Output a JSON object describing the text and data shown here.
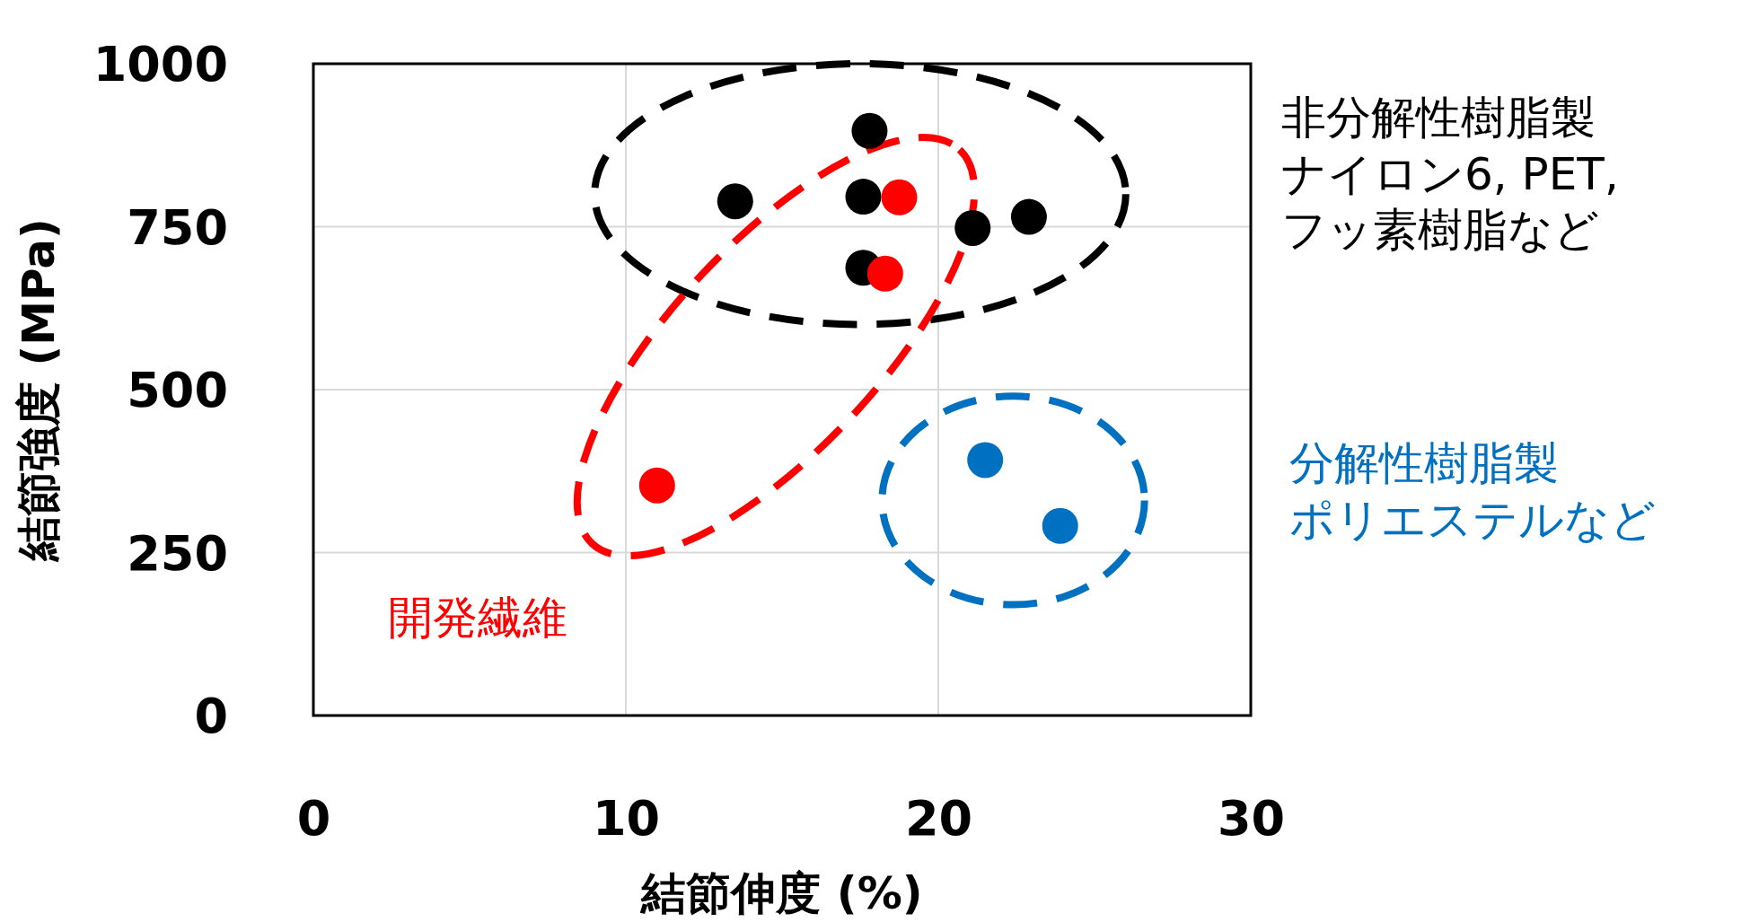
{
  "chart_data": {
    "type": "scatter",
    "xlabel": "結節伸度 (%)",
    "ylabel": "結節強度 (MPa)",
    "xlim": [
      0,
      30
    ],
    "xticks": [
      0,
      10,
      20,
      30
    ],
    "ylim": [
      0,
      1000
    ],
    "yticks": [
      0,
      250,
      500,
      750,
      1000
    ],
    "grid": true,
    "marker": "circle",
    "series": [
      {
        "name": "非分解性樹脂製ナイロン6, PET,フッ素樹脂など",
        "color": "#000000",
        "x": [
          17.8,
          13.5,
          17.6,
          17.6,
          21.1,
          22.9
        ],
        "values": [
          897,
          789,
          796,
          687,
          748,
          765
        ]
      },
      {
        "name": "開発繊維",
        "color": "#ff0000",
        "x": [
          18.75,
          18.3,
          11.0
        ],
        "values": [
          795,
          678,
          353
        ]
      },
      {
        "name": "分解性樹脂製ポリエステルなど",
        "color": "#0070c0",
        "x": [
          21.5,
          23.9
        ],
        "values": [
          392,
          291
        ]
      }
    ]
  }
}
